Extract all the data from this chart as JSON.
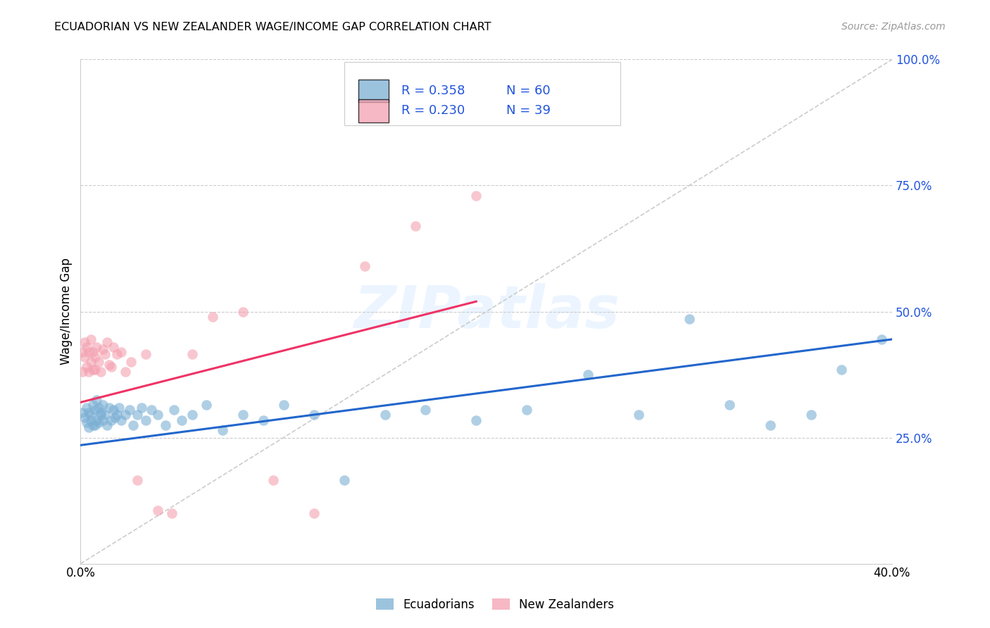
{
  "title": "ECUADORIAN VS NEW ZEALANDER WAGE/INCOME GAP CORRELATION CHART",
  "source": "Source: ZipAtlas.com",
  "ylabel": "Wage/Income Gap",
  "watermark": "ZIPatlas",
  "legend_blue_R": "0.358",
  "legend_blue_N": "60",
  "legend_pink_R": "0.230",
  "legend_pink_N": "39",
  "legend_label_blue": "Ecuadorians",
  "legend_label_pink": "New Zealanders",
  "blue_color": "#7BAFD4",
  "pink_color": "#F4A0B0",
  "blue_line_color": "#2266CC",
  "pink_line_color": "#EE3366",
  "diag_line_color": "#CCCCCC",
  "legend_text_color": "#2255DD",
  "blue_scatter_x": [
    0.001,
    0.002,
    0.003,
    0.003,
    0.004,
    0.004,
    0.005,
    0.005,
    0.006,
    0.006,
    0.007,
    0.007,
    0.008,
    0.008,
    0.009,
    0.009,
    0.01,
    0.01,
    0.011,
    0.011,
    0.012,
    0.013,
    0.014,
    0.015,
    0.016,
    0.017,
    0.018,
    0.019,
    0.02,
    0.022,
    0.024,
    0.026,
    0.028,
    0.03,
    0.032,
    0.035,
    0.038,
    0.042,
    0.046,
    0.05,
    0.055,
    0.062,
    0.07,
    0.08,
    0.09,
    0.1,
    0.115,
    0.13,
    0.15,
    0.17,
    0.195,
    0.22,
    0.25,
    0.275,
    0.3,
    0.32,
    0.34,
    0.36,
    0.375,
    0.395
  ],
  "blue_scatter_y": [
    0.3,
    0.29,
    0.31,
    0.28,
    0.3,
    0.27,
    0.295,
    0.285,
    0.315,
    0.275,
    0.305,
    0.275,
    0.325,
    0.285,
    0.31,
    0.28,
    0.3,
    0.295,
    0.285,
    0.315,
    0.295,
    0.275,
    0.31,
    0.285,
    0.305,
    0.29,
    0.295,
    0.31,
    0.285,
    0.295,
    0.305,
    0.275,
    0.295,
    0.31,
    0.285,
    0.305,
    0.295,
    0.275,
    0.305,
    0.285,
    0.295,
    0.315,
    0.265,
    0.295,
    0.285,
    0.315,
    0.295,
    0.165,
    0.295,
    0.305,
    0.285,
    0.305,
    0.375,
    0.295,
    0.485,
    0.315,
    0.275,
    0.295,
    0.385,
    0.445
  ],
  "pink_scatter_x": [
    0.001,
    0.001,
    0.002,
    0.002,
    0.003,
    0.003,
    0.004,
    0.004,
    0.005,
    0.005,
    0.006,
    0.006,
    0.007,
    0.007,
    0.008,
    0.009,
    0.01,
    0.011,
    0.012,
    0.013,
    0.014,
    0.015,
    0.016,
    0.018,
    0.02,
    0.022,
    0.025,
    0.028,
    0.032,
    0.038,
    0.045,
    0.055,
    0.065,
    0.08,
    0.095,
    0.115,
    0.14,
    0.165,
    0.195
  ],
  "pink_scatter_y": [
    0.42,
    0.38,
    0.44,
    0.41,
    0.39,
    0.43,
    0.38,
    0.42,
    0.4,
    0.445,
    0.385,
    0.42,
    0.41,
    0.385,
    0.43,
    0.4,
    0.38,
    0.425,
    0.415,
    0.44,
    0.395,
    0.39,
    0.43,
    0.415,
    0.42,
    0.38,
    0.4,
    0.165,
    0.415,
    0.105,
    0.1,
    0.415,
    0.49,
    0.5,
    0.165,
    0.1,
    0.59,
    0.67,
    0.73
  ],
  "blue_line_x": [
    0.0,
    0.4
  ],
  "blue_line_y": [
    0.235,
    0.445
  ],
  "pink_line_x": [
    0.0,
    0.195
  ],
  "pink_line_y": [
    0.32,
    0.52
  ],
  "diag_line_x": [
    0.0,
    0.4
  ],
  "diag_line_y": [
    0.0,
    1.0
  ],
  "xmin": 0.0,
  "xmax": 0.4,
  "ymin": 0.0,
  "ymax": 1.0,
  "ytick_positions": [
    0.25,
    0.5,
    0.75,
    1.0
  ],
  "ytick_labels": [
    "25.0%",
    "50.0%",
    "75.0%",
    "100.0%"
  ]
}
